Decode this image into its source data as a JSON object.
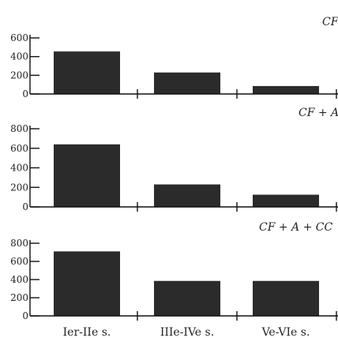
{
  "chart_data": [
    {
      "type": "bar",
      "panel_label": "CF",
      "categories": [
        "Ier-IIe s.",
        "IIIe-IVe s.",
        "Ve-VIe s."
      ],
      "values": [
        455,
        230,
        85
      ],
      "ylim": [
        0,
        600
      ],
      "yticks": [
        0,
        200,
        400,
        600
      ],
      "grid": false,
      "bar_color": "#2b2b2b"
    },
    {
      "type": "bar",
      "panel_label": "CF + A",
      "categories": [
        "Ier-IIe s.",
        "IIIe-IVe s.",
        "Ve-VIe s."
      ],
      "values": [
        640,
        230,
        125
      ],
      "ylim": [
        0,
        800
      ],
      "yticks": [
        0,
        200,
        400,
        600,
        800
      ],
      "grid": false,
      "bar_color": "#2b2b2b"
    },
    {
      "type": "bar",
      "panel_label": "CF + A + CC",
      "categories": [
        "Ier-IIe s.",
        "IIIe-IVe s.",
        "Ve-VIe s."
      ],
      "values": [
        710,
        385,
        385
      ],
      "ylim": [
        0,
        800
      ],
      "yticks": [
        0,
        200,
        400,
        600,
        800
      ],
      "grid": false,
      "bar_color": "#2b2b2b"
    }
  ]
}
